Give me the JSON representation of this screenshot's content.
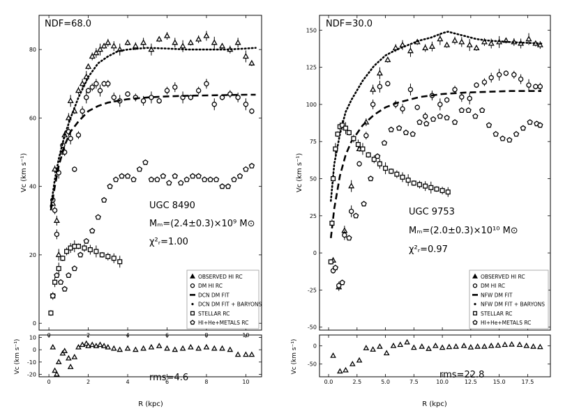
{
  "figure": {
    "panels": [
      {
        "id": "left",
        "ndf_label": "NDF=68.0",
        "galaxy": "UGC 8490",
        "mb": "Mₘ=(2.4±0.3)×10⁹ M⊙",
        "chi2": "χ²ᵣ=1.00",
        "ylabel": "Vᴄ (km s⁻¹)",
        "xlabel": "R (kpc)",
        "resid_ylabel": "Vᴄ (km s⁻¹)",
        "rms": "rms=4.6",
        "legend": [
          "OBSERVED HI RC",
          "DM HI RC",
          "DCN DM FIT",
          "DCN DM FIT + BARYONS",
          "STELLAR RC",
          "HI+He+METALS RC"
        ]
      },
      {
        "id": "right",
        "ndf_label": "NDF=30.0",
        "galaxy": "UGC 9753",
        "mb": "Mₘ=(2.0±0.3)×10¹⁰ M⊙",
        "chi2": "χ²ᵣ=0.97",
        "ylabel": "Vᴄ (km s⁻¹)",
        "xlabel": "R (kpc)",
        "resid_ylabel": "Vᴄ (km s⁻¹)",
        "rms": "rms=22.8",
        "legend": [
          "OBSERVED HI RC",
          "DM HI RC",
          "NFW DM FIT",
          "NFW DM FIT + BARYONS",
          "STELLAR RC",
          "HI+He+METALS RC"
        ]
      }
    ]
  },
  "chart_data": [
    {
      "type": "scatter",
      "panel": "left-main",
      "title": "UGC 8490",
      "xlabel": "R (kpc)",
      "ylabel": "V_c (km s^-1)",
      "xlim": [
        -0.5,
        10.8
      ],
      "ylim": [
        -2,
        90
      ],
      "xticks": [
        0,
        2,
        4,
        6,
        8,
        10
      ],
      "yticks": [
        0,
        20,
        40,
        60,
        80
      ],
      "series": [
        {
          "name": "OBSERVED HI RC",
          "marker": "triangle",
          "x": [
            0.2,
            0.3,
            0.4,
            0.5,
            0.7,
            0.8,
            1.0,
            1.1,
            1.3,
            1.5,
            1.7,
            1.9,
            2.0,
            2.2,
            2.4,
            2.6,
            2.8,
            3.0,
            3.3,
            3.6,
            4.0,
            4.4,
            4.8,
            5.2,
            5.6,
            6.0,
            6.4,
            6.8,
            7.2,
            7.6,
            8.0,
            8.4,
            8.8,
            9.2,
            9.6,
            10.0,
            10.3
          ],
          "y": [
            35,
            45,
            30,
            20,
            50,
            55,
            60,
            65,
            62,
            68,
            70,
            72,
            75,
            78,
            79,
            80,
            81,
            82,
            81,
            80,
            82,
            81,
            82,
            80,
            83,
            84,
            82,
            81,
            82,
            83,
            84,
            82,
            81,
            80,
            82,
            78,
            76
          ]
        },
        {
          "name": "DM HI RC",
          "marker": "circle",
          "x": [
            0.2,
            0.3,
            0.4,
            0.5,
            0.7,
            0.8,
            1.0,
            1.1,
            1.3,
            1.5,
            1.7,
            1.9,
            2.0,
            2.2,
            2.4,
            2.6,
            2.8,
            3.0,
            3.3,
            3.6,
            4.0,
            4.4,
            4.8,
            5.2,
            5.6,
            6.0,
            6.4,
            6.8,
            7.2,
            7.6,
            8.0,
            8.4,
            8.8,
            9.2,
            9.6,
            10.0,
            10.3
          ],
          "y": [
            36,
            33,
            26,
            44,
            52,
            50,
            56,
            54,
            45,
            55,
            62,
            66,
            68,
            69,
            70,
            68,
            70,
            70,
            66,
            65,
            67,
            66,
            65,
            66,
            65,
            68,
            69,
            66,
            66,
            68,
            70,
            64,
            66,
            67,
            66,
            64,
            62
          ]
        },
        {
          "name": "DCN DM FIT",
          "line": "dashed",
          "x": [
            0.1,
            0.3,
            0.5,
            0.8,
            1.1,
            1.5,
            2.0,
            2.5,
            3.0,
            4.0,
            5.0,
            6.0,
            7.0,
            8.0,
            9.0,
            10.0,
            10.5
          ],
          "y": [
            33,
            40,
            46,
            52,
            56,
            59,
            62,
            63.5,
            64.5,
            65.5,
            66,
            66.3,
            66.5,
            66.6,
            66.7,
            66.8,
            66.8
          ]
        },
        {
          "name": "DCN DM FIT + BARYONS",
          "line": "dotted",
          "x": [
            0.1,
            0.3,
            0.5,
            0.8,
            1.1,
            1.5,
            2.0,
            2.5,
            3.0,
            3.5,
            4.0,
            5.0,
            6.0,
            7.0,
            8.0,
            9.0,
            10.0,
            10.5
          ],
          "y": [
            34,
            42,
            48,
            55,
            60,
            66,
            72,
            76,
            78,
            79.5,
            80,
            80.5,
            80.3,
            80,
            80,
            80,
            80.3,
            80.5
          ]
        },
        {
          "name": "STELLAR RC",
          "marker": "square",
          "x": [
            0.1,
            0.2,
            0.3,
            0.5,
            0.7,
            0.9,
            1.1,
            1.3,
            1.5,
            1.8,
            2.1,
            2.4,
            2.7,
            3.0,
            3.3,
            3.6
          ],
          "y": [
            3,
            8,
            12,
            16,
            19,
            21,
            22,
            22.5,
            22.5,
            22,
            21.5,
            21,
            20,
            19.5,
            19,
            18
          ]
        },
        {
          "name": "HI+He+METALS RC",
          "marker": "pentagon",
          "x": [
            0.2,
            0.4,
            0.6,
            0.8,
            1.0,
            1.3,
            1.6,
            1.9,
            2.2,
            2.5,
            2.8,
            3.1,
            3.4,
            3.7,
            4.0,
            4.3,
            4.6,
            4.9,
            5.2,
            5.5,
            5.8,
            6.1,
            6.4,
            6.7,
            7.0,
            7.3,
            7.6,
            7.9,
            8.2,
            8.5,
            8.8,
            9.1,
            9.4,
            9.7,
            10.0,
            10.3
          ],
          "y": [
            8,
            14,
            12,
            10,
            14,
            16,
            20,
            24,
            27,
            31,
            36,
            40,
            42,
            43,
            43,
            42,
            45,
            47,
            42,
            42,
            43,
            41,
            43,
            41,
            42,
            43,
            43,
            42,
            42,
            42,
            40,
            40,
            42,
            43,
            45,
            46
          ]
        }
      ]
    },
    {
      "type": "scatter",
      "panel": "left-residual",
      "xlabel": "R (kpc)",
      "ylabel": "V_c (km s^-1)",
      "xlim": [
        -0.5,
        10.8
      ],
      "ylim": [
        -22,
        12
      ],
      "yticks": [
        -20,
        -10,
        0,
        10
      ],
      "series": [
        {
          "name": "residual",
          "marker": "triangle",
          "x": [
            0.2,
            0.3,
            0.4,
            0.5,
            0.7,
            0.8,
            1.0,
            1.1,
            1.3,
            1.5,
            1.7,
            1.9,
            2.0,
            2.2,
            2.4,
            2.6,
            2.8,
            3.0,
            3.3,
            3.6,
            4.0,
            4.4,
            4.8,
            5.2,
            5.6,
            6.0,
            6.4,
            6.8,
            7.2,
            7.6,
            8.0,
            8.4,
            8.8,
            9.2,
            9.6,
            10.0,
            10.3
          ],
          "y": [
            2,
            -17,
            -20,
            -10,
            -3,
            -1,
            -7,
            -14,
            -6,
            2,
            4,
            5,
            3,
            4,
            3,
            4,
            3,
            2,
            1,
            0,
            1,
            0,
            1,
            2,
            3,
            1,
            0,
            1,
            2,
            1,
            2,
            1,
            1,
            0,
            -4,
            -4,
            -4
          ]
        }
      ]
    },
    {
      "type": "scatter",
      "panel": "right-main",
      "title": "UGC 9753",
      "xlabel": "R (kpc)",
      "ylabel": "V_c (km s^-1)",
      "xlim": [
        -0.8,
        19.5
      ],
      "ylim": [
        -52,
        160
      ],
      "xticks": [
        0,
        2.5,
        5,
        7.5,
        10,
        12.5,
        15,
        17.5
      ],
      "yticks": [
        -50,
        -25,
        0,
        25,
        50,
        75,
        100,
        125,
        150
      ],
      "series": [
        {
          "name": "OBSERVED HI RC",
          "marker": "triangle",
          "x": [
            0.4,
            0.9,
            1.4,
            2.0,
            2.7,
            3.3,
            3.9,
            4.5,
            5.2,
            5.9,
            6.5,
            7.2,
            7.8,
            8.5,
            9.1,
            9.8,
            10.4,
            11.1,
            11.7,
            12.4,
            13.0,
            13.7,
            14.3,
            15.0,
            15.6,
            16.3,
            16.9,
            17.6,
            18.2,
            18.6
          ],
          "y": [
            -5,
            -23,
            15,
            45,
            70,
            88,
            110,
            121,
            130,
            138,
            140,
            136,
            142,
            138,
            139,
            144,
            140,
            143,
            142,
            140,
            138,
            142,
            141,
            142,
            143,
            142,
            141,
            144,
            141,
            140
          ]
        },
        {
          "name": "DM HI RC",
          "marker": "circle",
          "x": [
            0.4,
            0.9,
            1.4,
            2.0,
            2.7,
            3.3,
            3.9,
            4.5,
            5.2,
            5.9,
            6.5,
            7.2,
            7.8,
            8.5,
            9.1,
            9.8,
            10.4,
            11.1,
            11.7,
            12.4,
            13.0,
            13.7,
            14.3,
            15.0,
            15.6,
            16.3,
            16.9,
            17.6,
            18.2,
            18.6
          ],
          "y": [
            -12,
            -22,
            12,
            28,
            60,
            79,
            100,
            112,
            114,
            100,
            97,
            110,
            98,
            92,
            106,
            100,
            103,
            110,
            105,
            104,
            113,
            115,
            118,
            120,
            121,
            120,
            117,
            113,
            112,
            112
          ]
        },
        {
          "name": "NFW DM FIT",
          "line": "dashed",
          "x": [
            0.2,
            0.5,
            1.0,
            1.5,
            2.0,
            3.0,
            4.0,
            5.0,
            6.0,
            7.0,
            8.0,
            10.0,
            12.0,
            14.0,
            16.0,
            18.7
          ],
          "y": [
            10,
            30,
            52,
            66,
            75,
            86,
            93,
            98,
            101,
            103,
            105,
            107,
            108,
            108.5,
            109,
            109
          ]
        },
        {
          "name": "NFW DM FIT + BARYONS",
          "line": "dotted",
          "x": [
            0.2,
            0.5,
            1.0,
            1.5,
            2.0,
            3.0,
            4.0,
            5.0,
            6.0,
            7.0,
            8.0,
            9.0,
            10.0,
            10.5,
            11.0,
            12.0,
            13.0,
            14.0,
            16.0,
            18.7
          ],
          "y": [
            35,
            60,
            80,
            95,
            103,
            116,
            126,
            133,
            137,
            140,
            143,
            145,
            148,
            149,
            148,
            146,
            144,
            143,
            142,
            141
          ]
        },
        {
          "name": "STELLAR RC",
          "marker": "square",
          "x": [
            0.2,
            0.3,
            0.4,
            0.6,
            0.8,
            1.0,
            1.2,
            1.5,
            1.8,
            2.2,
            2.6,
            3.0,
            3.5,
            4.0,
            4.5,
            5.0,
            5.5,
            6.0,
            6.5,
            7.0,
            7.5,
            8.0,
            8.5,
            9.0,
            9.5,
            10.0,
            10.5
          ],
          "y": [
            -6,
            20,
            50,
            70,
            80,
            85,
            86,
            84,
            81,
            77,
            73,
            70,
            66,
            63,
            60,
            57,
            55,
            53,
            51,
            49,
            47,
            46,
            45,
            44,
            43,
            42,
            41
          ]
        },
        {
          "name": "HI+He+METALS RC",
          "marker": "pentagon",
          "x": [
            0.6,
            1.2,
            1.8,
            2.4,
            3.1,
            3.7,
            4.3,
            4.9,
            5.5,
            6.2,
            6.8,
            7.4,
            8.0,
            8.6,
            9.2,
            9.8,
            10.4,
            11.1,
            11.7,
            12.3,
            12.9,
            13.5,
            14.1,
            14.7,
            15.3,
            15.9,
            16.5,
            17.1,
            17.7,
            18.3,
            18.6
          ],
          "y": [
            -10,
            -20,
            10,
            25,
            33,
            50,
            65,
            74,
            83,
            84,
            81,
            80,
            88,
            87,
            90,
            92,
            91,
            88,
            96,
            96,
            92,
            96,
            86,
            80,
            77,
            76,
            80,
            84,
            88,
            87,
            86
          ]
        }
      ]
    },
    {
      "type": "scatter",
      "panel": "right-residual",
      "xlabel": "R (kpc)",
      "ylabel": "V_c (km s^-1)",
      "xlim": [
        -0.8,
        19.5
      ],
      "ylim": [
        -85,
        30
      ],
      "xticks": [
        0,
        2.5,
        5,
        7.5,
        10,
        12.5,
        15,
        17.5
      ],
      "xticklabels": [
        "0.0",
        "2.5",
        "5.0",
        "7.5",
        "10.0",
        "12.5",
        "15.0",
        "17.5"
      ],
      "yticks": [
        -50,
        0
      ],
      "series": [
        {
          "name": "residual",
          "marker": "triangle",
          "x": [
            0.4,
            1.0,
            1.5,
            2.1,
            2.7,
            3.3,
            3.9,
            4.5,
            5.1,
            5.7,
            6.3,
            6.9,
            7.5,
            8.2,
            8.8,
            9.4,
            10.0,
            10.6,
            11.2,
            11.9,
            12.5,
            13.1,
            13.7,
            14.3,
            14.9,
            15.5,
            16.1,
            16.8,
            17.4,
            18.0,
            18.6
          ],
          "y": [
            -27,
            -70,
            -67,
            -50,
            -40,
            -6,
            -10,
            -2,
            -20,
            0,
            3,
            10,
            -5,
            -2,
            -8,
            0,
            -5,
            -3,
            -2,
            0,
            -4,
            -2,
            -2,
            0,
            1,
            3,
            4,
            3,
            0,
            -2,
            -3
          ]
        }
      ]
    }
  ]
}
